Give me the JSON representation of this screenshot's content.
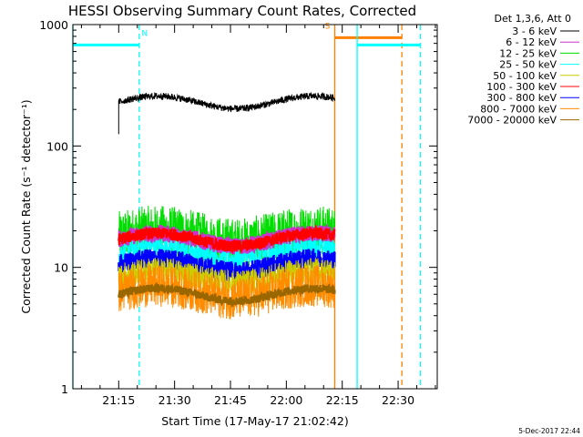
{
  "chart_data": {
    "type": "line",
    "title": "HESSI Observing Summary Count Rates, Corrected",
    "xlabel": "Start Time (17-May-17 21:02:42)",
    "ylabel": "Corrected Count Rate (s⁻¹ detector⁻¹)",
    "yscale": "log",
    "xlim": [
      "21:02:42",
      "22:40:30"
    ],
    "ylim": [
      1,
      1000
    ],
    "x_ticks": [
      "21:15",
      "21:30",
      "21:45",
      "22:00",
      "22:15",
      "22:30"
    ],
    "y_ticks": [
      {
        "value": 1,
        "label": "1"
      },
      {
        "value": 10,
        "label": "10"
      },
      {
        "value": 100,
        "label": "100"
      },
      {
        "value": 1000,
        "label": "1000"
      }
    ],
    "legend_header": "Det 1,3,6, Att 0",
    "legend_position": "right",
    "series": [
      {
        "name": "3 - 6 keV",
        "color": "#000000",
        "t_start": "21:15:00",
        "t_end": "22:13:00",
        "base": 230,
        "noise": 0.04,
        "start_value": 125
      },
      {
        "name": "6 - 12 keV",
        "color": "#cc33cc",
        "t_start": "21:15:00",
        "t_end": "22:13:00",
        "base": 17,
        "noise": 0.1
      },
      {
        "name": "12 - 25 keV",
        "color": "#00dd00",
        "t_start": "21:15:00",
        "t_end": "22:13:00",
        "base": 18,
        "noise": 0.3
      },
      {
        "name": "25 - 50 keV",
        "color": "#00ffff",
        "t_start": "21:15:00",
        "t_end": "22:13:00",
        "base": 13.5,
        "noise": 0.15
      },
      {
        "name": "50 - 100 keV",
        "color": "#cccc00",
        "t_start": "21:15:00",
        "t_end": "22:13:00",
        "base": 8.5,
        "noise": 0.15
      },
      {
        "name": "100 - 300 keV",
        "color": "#ff0000",
        "t_start": "21:15:00",
        "t_end": "22:13:00",
        "base": 17,
        "noise": 0.07
      },
      {
        "name": "300 - 800 keV",
        "color": "#0000ff",
        "t_start": "21:15:00",
        "t_end": "22:13:00",
        "base": 10.5,
        "noise": 0.12
      },
      {
        "name": "800 - 7000 keV",
        "color": "#ff8c00",
        "t_start": "21:15:00",
        "t_end": "22:13:00",
        "base": 6.3,
        "noise": 0.25
      },
      {
        "name": "7000 - 20000 keV",
        "color": "#996600",
        "t_start": "21:15:00",
        "t_end": "22:13:00",
        "base": 6,
        "noise": 0.05
      }
    ],
    "markers": [
      {
        "type": "night",
        "t_start": "21:02:42",
        "t_end": "21:20:30",
        "level": 680,
        "label": "N",
        "color": "#00ffff"
      },
      {
        "type": "saa",
        "t_start": "22:13:00",
        "t_end": "22:31:00",
        "level": 780,
        "label": "S",
        "color": "#ff8000"
      },
      {
        "type": "night",
        "t_start": "22:19:00",
        "t_end": "22:36:00",
        "level": 680,
        "label": "",
        "color": "#00ffff"
      }
    ],
    "footer": "5-Dec-2017 22:44"
  }
}
